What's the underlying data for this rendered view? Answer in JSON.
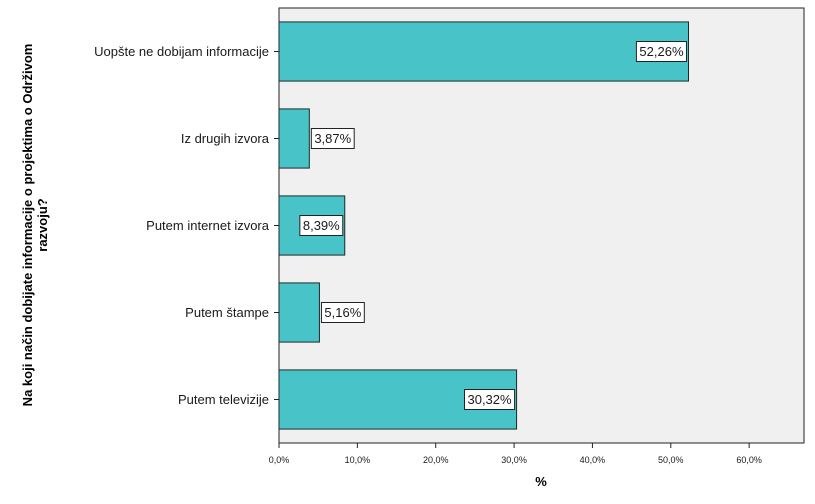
{
  "chart_data": {
    "type": "bar",
    "orientation": "horizontal",
    "categories": [
      "Uopšte ne dobijam informacije",
      "Iz drugih izvora",
      "Putem internet izvora",
      "Putem štampe",
      "Putem televizije"
    ],
    "values": [
      52.26,
      3.87,
      8.39,
      5.16,
      30.32
    ],
    "data_labels": [
      "52,26%",
      "3,87%",
      "8,39%",
      "5,16%",
      "30,32%"
    ],
    "xlabel": "%",
    "ylabel": "Na koji način dobijate informacije o projektima o Održivom razvoju?",
    "xlim": [
      0,
      67
    ],
    "xticks": [
      0,
      10,
      20,
      30,
      40,
      50,
      60
    ],
    "xtick_labels": [
      "0,0%",
      "10,0%",
      "20,0%",
      "30,0%",
      "40,0%",
      "50,0%",
      "60,0%"
    ],
    "grid": false,
    "legend": "none",
    "colors": {
      "bar_fill": "#48c4c8",
      "bar_stroke": "#1e2a2a",
      "plot_background": "#f0f0f0",
      "label_box": "#ffffff"
    }
  }
}
